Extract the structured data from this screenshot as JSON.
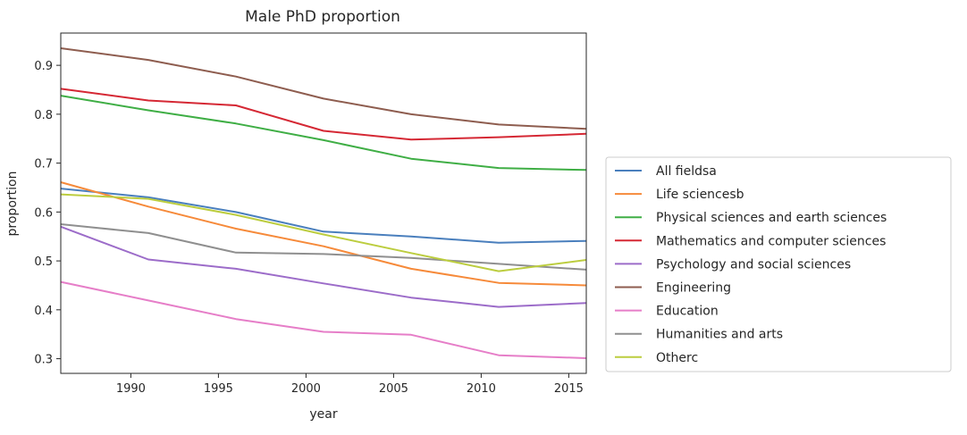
{
  "chart_data": {
    "type": "line",
    "title": "Male PhD proportion",
    "xlabel": "year",
    "ylabel": "proportion",
    "xlim": [
      1986,
      2016
    ],
    "ylim": [
      0.27,
      0.966
    ],
    "x_ticks": [
      1990,
      1995,
      2000,
      2005,
      2010,
      2015
    ],
    "y_ticks": [
      0.3,
      0.4,
      0.5,
      0.6,
      0.7,
      0.8,
      0.9
    ],
    "x_tick_labels": [
      "1990",
      "1995",
      "2000",
      "2005",
      "2010",
      "2015"
    ],
    "y_tick_labels": [
      "0.3",
      "0.4",
      "0.5",
      "0.6",
      "0.7",
      "0.8",
      "0.9"
    ],
    "x": [
      1986,
      1991,
      1996,
      2001,
      2006,
      2011,
      2016
    ],
    "legend_position": "right",
    "series": [
      {
        "name": "All fieldsa",
        "color": "#4a7fbd",
        "values": [
          0.648,
          0.63,
          0.6,
          0.56,
          0.55,
          0.537,
          0.541
        ]
      },
      {
        "name": "Life sciencesb",
        "color": "#f68a3a",
        "values": [
          0.661,
          0.611,
          0.566,
          0.53,
          0.484,
          0.455,
          0.45
        ]
      },
      {
        "name": "Physical sciences and earth sciences",
        "color": "#3fae45",
        "values": [
          0.838,
          0.808,
          0.781,
          0.747,
          0.709,
          0.69,
          0.686
        ]
      },
      {
        "name": "Mathematics and computer sciences",
        "color": "#d52834",
        "values": [
          0.852,
          0.828,
          0.818,
          0.766,
          0.748,
          0.753,
          0.76
        ]
      },
      {
        "name": "Psychology and social sciences",
        "color": "#9c6cc9",
        "values": [
          0.57,
          0.503,
          0.484,
          0.454,
          0.425,
          0.406,
          0.414
        ]
      },
      {
        "name": "Engineering",
        "color": "#8e5d4f",
        "values": [
          0.935,
          0.911,
          0.877,
          0.832,
          0.8,
          0.779,
          0.77
        ]
      },
      {
        "name": "Education",
        "color": "#e67ec8",
        "values": [
          0.457,
          0.419,
          0.381,
          0.355,
          0.349,
          0.307,
          0.301
        ]
      },
      {
        "name": "Humanities and arts",
        "color": "#8f8f8f",
        "values": [
          0.575,
          0.557,
          0.517,
          0.514,
          0.506,
          0.494,
          0.482
        ]
      },
      {
        "name": "Otherc",
        "color": "#bccd3f",
        "values": [
          0.636,
          0.627,
          0.594,
          0.554,
          0.516,
          0.479,
          0.502
        ]
      }
    ]
  }
}
